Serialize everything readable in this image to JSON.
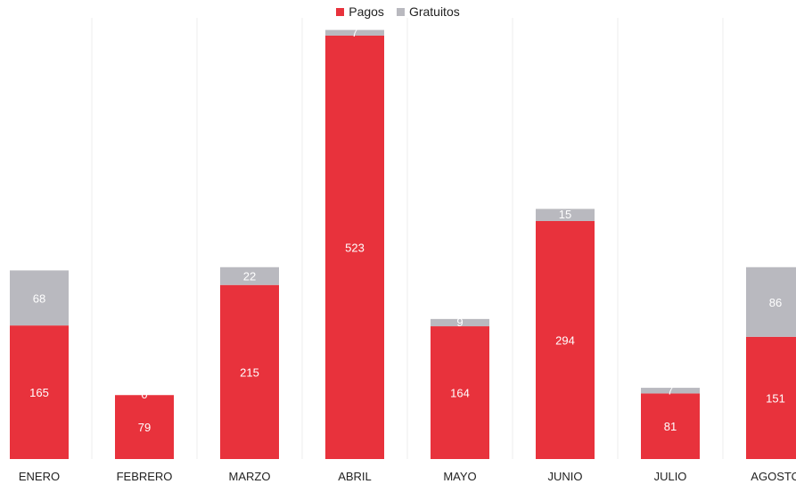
{
  "legend": {
    "items": [
      {
        "label": "Pagos",
        "color": "#e8323c"
      },
      {
        "label": "Gratuitos",
        "color": "#b9b9bf"
      }
    ]
  },
  "chart_data": {
    "type": "bar",
    "stacked": true,
    "title": "",
    "xlabel": "",
    "ylabel": "",
    "grid": true,
    "legend_position": "top-center",
    "categories": [
      "ENERO",
      "FEBRERO",
      "MARZO",
      "ABRIL",
      "MAYO",
      "JUNIO",
      "JULIO",
      "AGOSTO"
    ],
    "ylim": [
      0,
      545
    ],
    "series": [
      {
        "name": "Pagos",
        "color": "#e8323c",
        "values": [
          165,
          79,
          215,
          523,
          164,
          294,
          81,
          151
        ]
      },
      {
        "name": "Gratuitos",
        "color": "#b9b9bf",
        "values": [
          68,
          0,
          22,
          7,
          9,
          15,
          7,
          86
        ]
      }
    ]
  }
}
